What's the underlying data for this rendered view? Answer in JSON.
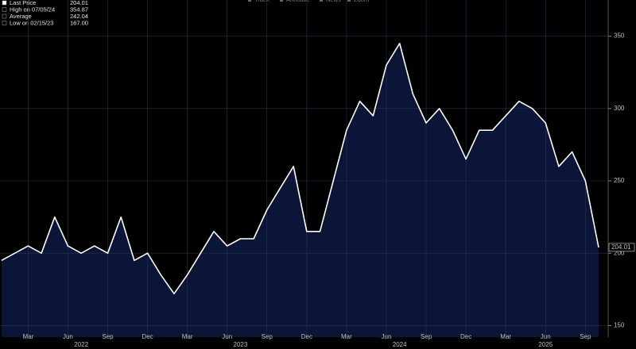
{
  "menu": [
    "Track",
    "Annotate",
    "News",
    "Zoom"
  ],
  "legend": [
    {
      "label": "Last Price",
      "value": "204.01"
    },
    {
      "label": "High on 07/05/24",
      "value": "354.87"
    },
    {
      "label": "Average",
      "value": "242.04"
    },
    {
      "label": "Low on 02/15/23",
      "value": "167.00"
    }
  ],
  "chart_data": {
    "type": "area",
    "x": [
      "2022-01",
      "2022-02",
      "2022-03",
      "2022-04",
      "2022-05",
      "2022-06",
      "2022-07",
      "2022-08",
      "2022-09",
      "2022-10",
      "2022-11",
      "2022-12",
      "2023-01",
      "2023-02",
      "2023-03",
      "2023-04",
      "2023-05",
      "2023-06",
      "2023-07",
      "2023-08",
      "2023-09",
      "2023-10",
      "2023-11",
      "2023-12",
      "2024-01",
      "2024-02",
      "2024-03",
      "2024-04",
      "2024-05",
      "2024-06",
      "2024-07",
      "2024-08",
      "2024-09",
      "2024-10",
      "2024-11",
      "2024-12",
      "2025-01",
      "2025-02",
      "2025-03",
      "2025-04",
      "2025-05",
      "2025-06",
      "2025-07",
      "2025-08",
      "2025-09",
      "2025-10"
    ],
    "series": [
      {
        "name": "Last Price",
        "color": "#ffffff",
        "fill": "#0b1538",
        "values": [
          195,
          200,
          205,
          200,
          225,
          205,
          200,
          205,
          200,
          225,
          195,
          200,
          185,
          172,
          185,
          200,
          215,
          205,
          210,
          210,
          230,
          245,
          260,
          215,
          215,
          250,
          285,
          305,
          295,
          330,
          345,
          310,
          290,
          300,
          285,
          265,
          285,
          285,
          295,
          305,
          300,
          290,
          260,
          270,
          250,
          204
        ]
      }
    ],
    "xticks": [
      {
        "value": "2022-03",
        "label": "Mar"
      },
      {
        "value": "2022-06",
        "label": "Jun"
      },
      {
        "value": "2022-09",
        "label": "Sep"
      },
      {
        "value": "2022-12",
        "label": "Dec"
      },
      {
        "value": "2023-03",
        "label": "Mar"
      },
      {
        "value": "2023-06",
        "label": "Jun"
      },
      {
        "value": "2023-09",
        "label": "Sep"
      },
      {
        "value": "2023-12",
        "label": "Dec"
      },
      {
        "value": "2024-03",
        "label": "Mar"
      },
      {
        "value": "2024-06",
        "label": "Jun"
      },
      {
        "value": "2024-09",
        "label": "Sep"
      },
      {
        "value": "2024-12",
        "label": "Dec"
      },
      {
        "value": "2025-03",
        "label": "Mar"
      },
      {
        "value": "2025-06",
        "label": "Jun"
      },
      {
        "value": "2025-09",
        "label": "Sep"
      }
    ],
    "year_labels": [
      {
        "value": "2022-07",
        "label": "2022"
      },
      {
        "value": "2023-07",
        "label": "2023"
      },
      {
        "value": "2024-07",
        "label": "2024"
      },
      {
        "value": "2025-06",
        "label": "2025"
      }
    ],
    "ylim": [
      142,
      375
    ],
    "yticks": [
      150,
      200,
      250,
      300,
      350
    ],
    "grid": true
  }
}
